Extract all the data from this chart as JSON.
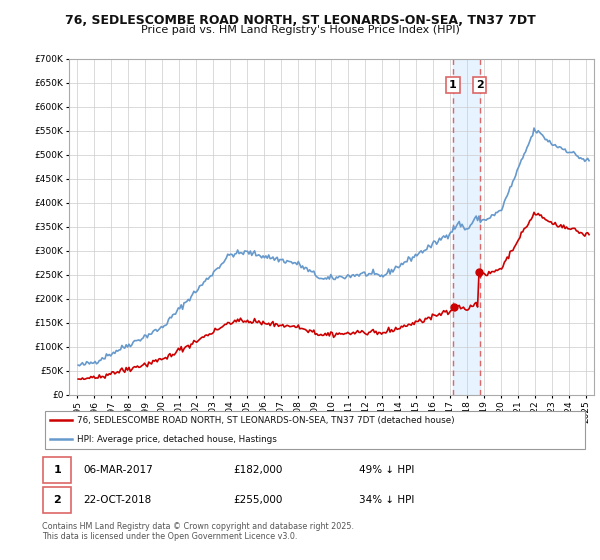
{
  "title1": "76, SEDLESCOMBE ROAD NORTH, ST LEONARDS-ON-SEA, TN37 7DT",
  "title2": "Price paid vs. HM Land Registry's House Price Index (HPI)",
  "hpi_color": "#6699cc",
  "price_color": "#cc0000",
  "dashed_color": "#dd6666",
  "shade_color": "#ddeeff",
  "background_color": "#ffffff",
  "grid_color": "#cccccc",
  "sale1_x": 2017.17,
  "sale1_price": 182000,
  "sale2_x": 2018.75,
  "sale2_price": 255000,
  "legend_line1": "76, SEDLESCOMBE ROAD NORTH, ST LEONARDS-ON-SEA, TN37 7DT (detached house)",
  "legend_line2": "HPI: Average price, detached house, Hastings",
  "footer": "Contains HM Land Registry data © Crown copyright and database right 2025.\nThis data is licensed under the Open Government Licence v3.0.",
  "ylim_max": 700000,
  "ylim_min": 0,
  "xmin": 1994.5,
  "xmax": 2025.5
}
